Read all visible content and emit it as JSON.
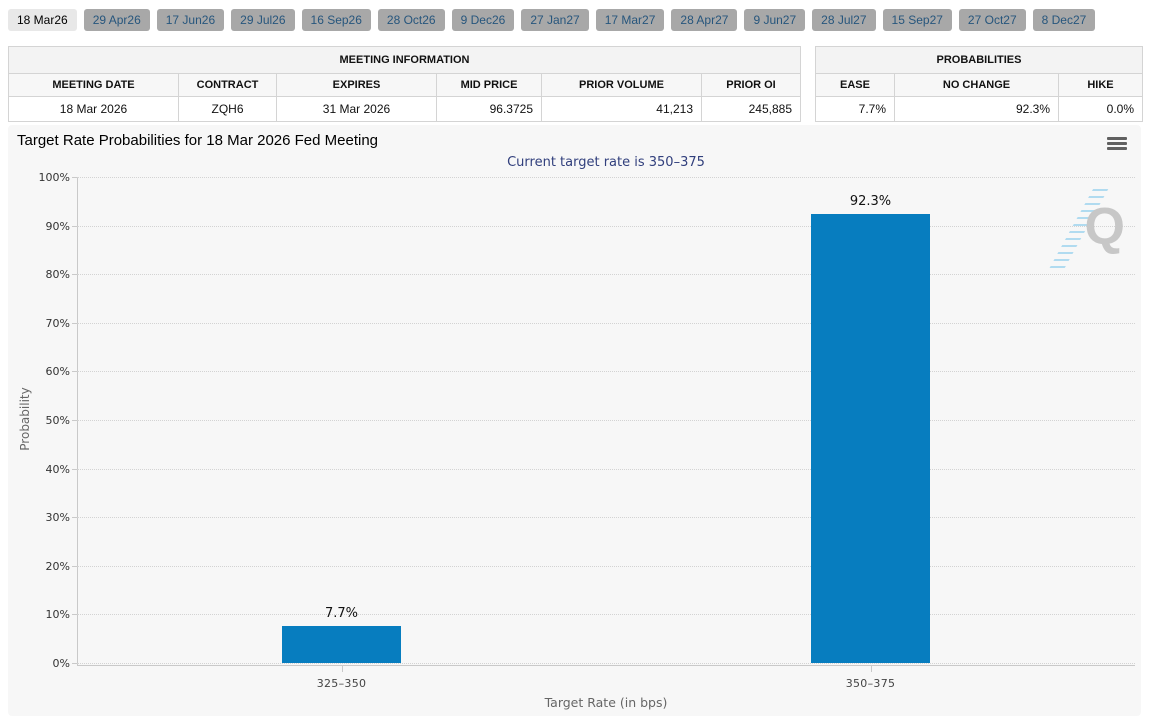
{
  "colors": {
    "bar": "#077dbf",
    "subtitle_navy": "#32407d",
    "tab_text": "#27567d",
    "active_tab_bg": "#e8e8e8",
    "inactive_tab_bg": "#a8a8a8",
    "chart_bg": "#f7f7f7"
  },
  "tabs": [
    {
      "label": "18 Mar26",
      "active": true
    },
    {
      "label": "29 Apr26",
      "active": false
    },
    {
      "label": "17 Jun26",
      "active": false
    },
    {
      "label": "29 Jul26",
      "active": false
    },
    {
      "label": "16 Sep26",
      "active": false
    },
    {
      "label": "28 Oct26",
      "active": false
    },
    {
      "label": "9 Dec26",
      "active": false
    },
    {
      "label": "27 Jan27",
      "active": false
    },
    {
      "label": "17 Mar27",
      "active": false
    },
    {
      "label": "28 Apr27",
      "active": false
    },
    {
      "label": "9 Jun27",
      "active": false
    },
    {
      "label": "28 Jul27",
      "active": false
    },
    {
      "label": "15 Sep27",
      "active": false
    },
    {
      "label": "27 Oct27",
      "active": false
    },
    {
      "label": "8 Dec27",
      "active": false
    }
  ],
  "meeting_info": {
    "title": "MEETING INFORMATION",
    "columns": [
      "MEETING DATE",
      "CONTRACT",
      "EXPIRES",
      "MID PRICE",
      "PRIOR VOLUME",
      "PRIOR OI"
    ],
    "values": [
      "18 Mar 2026",
      "ZQH6",
      "31 Mar 2026",
      "96.3725",
      "41,213",
      "245,885"
    ],
    "value_aligns": [
      "center",
      "center",
      "center",
      "right",
      "right",
      "right"
    ]
  },
  "probabilities": {
    "title": "PROBABILITIES",
    "columns": [
      "EASE",
      "NO CHANGE",
      "HIKE"
    ],
    "values": [
      "7.7%",
      "92.3%",
      "0.0%"
    ],
    "value_aligns": [
      "right",
      "right",
      "right"
    ]
  },
  "chart": {
    "title": "Target Rate Probabilities for 18 Mar 2026 Fed Meeting",
    "subtitle": "Current target rate is 350–375",
    "xlabel": "Target Rate (in bps)",
    "ylabel": "Probability",
    "watermark_letter": "Q",
    "menu_icon": "hamburger-icon"
  },
  "chart_data": {
    "type": "bar",
    "categories": [
      "325–350",
      "350–375"
    ],
    "values": [
      7.7,
      92.3
    ],
    "value_labels": [
      "7.7%",
      "92.3%"
    ],
    "title": "Target Rate Probabilities for 18 Mar 2026 Fed Meeting",
    "subtitle": "Current target rate is 350–375",
    "xlabel": "Target Rate (in bps)",
    "ylabel": "Probability",
    "ylim": [
      0,
      100
    ],
    "ytick_step": 10,
    "ytick_suffix": "%",
    "grid": "dotted-horizontal",
    "legend": "none",
    "bar_color": "#077dbf"
  }
}
